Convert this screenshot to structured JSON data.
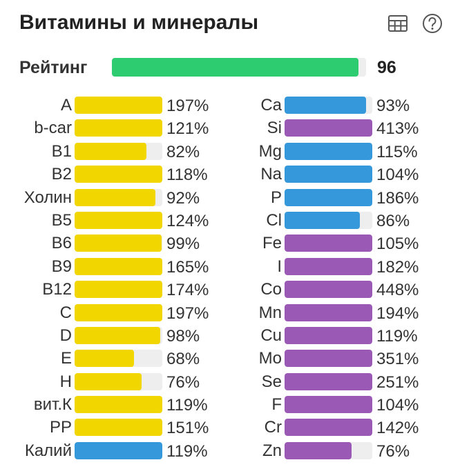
{
  "header": {
    "title": "Витамины и минералы",
    "icons": [
      "table-icon",
      "help-icon"
    ]
  },
  "colors": {
    "rating": "#2ecc71",
    "vitamin": "#f2d600",
    "electrolyte": "#3498db",
    "mineral": "#9b59b6",
    "track": "#eeeeee"
  },
  "rating": {
    "label": "Рейтинг",
    "value": "96",
    "fill": 0.97
  },
  "left_column": [
    {
      "label": "A",
      "value": "197%",
      "fill": 1.0,
      "color": "#f2d600"
    },
    {
      "label": "b-car",
      "value": "121%",
      "fill": 1.0,
      "color": "#f2d600"
    },
    {
      "label": "B1",
      "value": "82%",
      "fill": 0.82,
      "color": "#f2d600"
    },
    {
      "label": "B2",
      "value": "118%",
      "fill": 1.0,
      "color": "#f2d600"
    },
    {
      "label": "Холин",
      "value": "92%",
      "fill": 0.92,
      "color": "#f2d600"
    },
    {
      "label": "B5",
      "value": "124%",
      "fill": 1.0,
      "color": "#f2d600"
    },
    {
      "label": "B6",
      "value": "99%",
      "fill": 0.99,
      "color": "#f2d600"
    },
    {
      "label": "B9",
      "value": "165%",
      "fill": 1.0,
      "color": "#f2d600"
    },
    {
      "label": "B12",
      "value": "174%",
      "fill": 1.0,
      "color": "#f2d600"
    },
    {
      "label": "C",
      "value": "197%",
      "fill": 1.0,
      "color": "#f2d600"
    },
    {
      "label": "D",
      "value": "98%",
      "fill": 0.98,
      "color": "#f2d600"
    },
    {
      "label": "E",
      "value": "68%",
      "fill": 0.68,
      "color": "#f2d600"
    },
    {
      "label": "H",
      "value": "76%",
      "fill": 0.76,
      "color": "#f2d600"
    },
    {
      "label": "вит.К",
      "value": "119%",
      "fill": 1.0,
      "color": "#f2d600"
    },
    {
      "label": "PP",
      "value": "151%",
      "fill": 1.0,
      "color": "#f2d600"
    },
    {
      "label": "Калий",
      "value": "119%",
      "fill": 1.0,
      "color": "#3498db"
    }
  ],
  "right_column": [
    {
      "label": "Ca",
      "value": "93%",
      "fill": 0.93,
      "color": "#3498db"
    },
    {
      "label": "Si",
      "value": "413%",
      "fill": 1.0,
      "color": "#9b59b6"
    },
    {
      "label": "Mg",
      "value": "115%",
      "fill": 1.0,
      "color": "#3498db"
    },
    {
      "label": "Na",
      "value": "104%",
      "fill": 1.0,
      "color": "#3498db"
    },
    {
      "label": "P",
      "value": "186%",
      "fill": 1.0,
      "color": "#3498db"
    },
    {
      "label": "Cl",
      "value": "86%",
      "fill": 0.86,
      "color": "#3498db"
    },
    {
      "label": "Fe",
      "value": "105%",
      "fill": 1.0,
      "color": "#9b59b6"
    },
    {
      "label": "I",
      "value": "182%",
      "fill": 1.0,
      "color": "#9b59b6"
    },
    {
      "label": "Co",
      "value": "448%",
      "fill": 1.0,
      "color": "#9b59b6"
    },
    {
      "label": "Mn",
      "value": "194%",
      "fill": 1.0,
      "color": "#9b59b6"
    },
    {
      "label": "Cu",
      "value": "119%",
      "fill": 1.0,
      "color": "#9b59b6"
    },
    {
      "label": "Mo",
      "value": "351%",
      "fill": 1.0,
      "color": "#9b59b6"
    },
    {
      "label": "Se",
      "value": "251%",
      "fill": 1.0,
      "color": "#9b59b6"
    },
    {
      "label": "F",
      "value": "104%",
      "fill": 1.0,
      "color": "#9b59b6"
    },
    {
      "label": "Cr",
      "value": "142%",
      "fill": 1.0,
      "color": "#9b59b6"
    },
    {
      "label": "Zn",
      "value": "76%",
      "fill": 0.76,
      "color": "#9b59b6"
    }
  ]
}
